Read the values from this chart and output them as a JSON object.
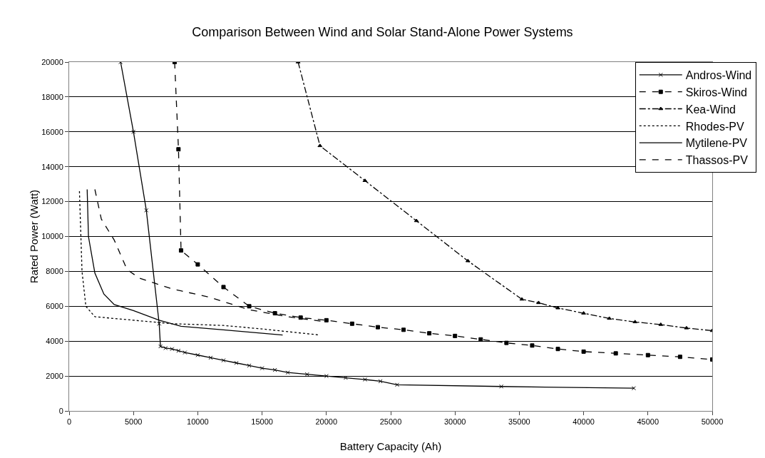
{
  "chart_data": {
    "type": "line",
    "title": "Comparison Between Wind and Solar Stand-Alone Power Systems",
    "xlabel": "Battery Capacity (Ah)",
    "ylabel": "Rated Power (Watt)",
    "xlim": [
      0,
      50000
    ],
    "xticks": [
      0,
      5000,
      10000,
      15000,
      20000,
      25000,
      30000,
      35000,
      40000,
      45000,
      50000
    ],
    "ylim": [
      0,
      20000
    ],
    "yticks": [
      0,
      2000,
      4000,
      6000,
      8000,
      10000,
      12000,
      14000,
      16000,
      18000,
      20000
    ],
    "grid": "y",
    "legend": "top right",
    "series": [
      {
        "name": "Andros-Wind",
        "color": "#000000",
        "marker": "cross",
        "line_style": "solid",
        "x": [
          4000,
          5000,
          6000,
          7000,
          7100,
          7500,
          8000,
          8500,
          9000,
          10000,
          11000,
          12000,
          13000,
          14000,
          15000,
          16000,
          17000,
          18500,
          20000,
          21500,
          23000,
          24200,
          25500,
          33600,
          43900
        ],
        "values": [
          20000,
          16000,
          11500,
          5000,
          3700,
          3600,
          3550,
          3450,
          3350,
          3200,
          3050,
          2900,
          2750,
          2600,
          2450,
          2350,
          2200,
          2100,
          2000,
          1900,
          1800,
          1700,
          1500,
          1400,
          1300
        ]
      },
      {
        "name": "Skiros-Wind",
        "color": "#000000",
        "marker": "square",
        "line_style": "dashed",
        "x": [
          8200,
          8500,
          8700,
          10000,
          12000,
          14000,
          16000,
          18000,
          20000,
          22000,
          24000,
          26000,
          28000,
          30000,
          32000,
          34000,
          36000,
          38000,
          40000,
          42500,
          45000,
          47500,
          50000
        ],
        "values": [
          20000,
          15000,
          9200,
          8400,
          7100,
          6000,
          5600,
          5350,
          5200,
          5000,
          4800,
          4650,
          4450,
          4300,
          4100,
          3900,
          3750,
          3550,
          3400,
          3300,
          3200,
          3100,
          2950
        ]
      },
      {
        "name": "Kea-Wind",
        "color": "#000000",
        "marker": "triangle",
        "line_style": "dashdot",
        "x": [
          17800,
          19500,
          23000,
          27000,
          31000,
          35200,
          36500,
          38000,
          40000,
          42000,
          44000,
          46000,
          48000,
          50000
        ],
        "values": [
          20000,
          15200,
          13200,
          10900,
          8600,
          6400,
          6200,
          5900,
          5600,
          5300,
          5100,
          4950,
          4750,
          4600
        ]
      },
      {
        "name": "Rhodes-PV",
        "color": "#000000",
        "marker": "none",
        "line_style": "dotted",
        "x": [
          800,
          1000,
          1300,
          2000,
          5000,
          8000,
          12000,
          15000,
          19500
        ],
        "values": [
          12600,
          8000,
          6000,
          5400,
          5200,
          5000,
          4900,
          4700,
          4350
        ]
      },
      {
        "name": "Mytilene-PV",
        "color": "#000000",
        "marker": "none",
        "line_style": "solid",
        "x": [
          1400,
          1500,
          2000,
          2700,
          3500,
          5000,
          7000,
          8700,
          12000,
          16600
        ],
        "values": [
          12700,
          10000,
          7900,
          6700,
          6100,
          5750,
          5200,
          4850,
          4650,
          4350
        ]
      },
      {
        "name": "Thassos-PV",
        "color": "#000000",
        "marker": "none",
        "line_style": "dashed",
        "x": [
          2000,
          2500,
          3500,
          4500,
          5500,
          8000,
          11000,
          14000,
          17000,
          20000
        ],
        "values": [
          12700,
          11000,
          9800,
          8100,
          7600,
          7000,
          6500,
          5800,
          5400,
          5100
        ]
      }
    ]
  }
}
